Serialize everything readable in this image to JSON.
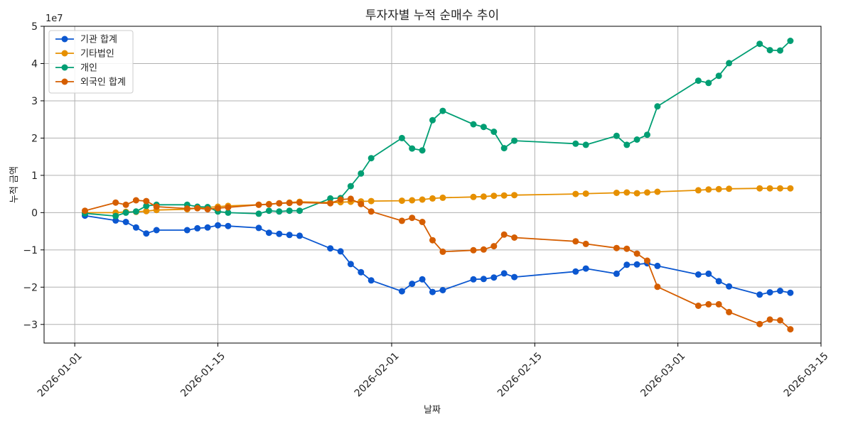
{
  "chart_data": {
    "type": "line",
    "title": "투자자별 누적 순매수 추이",
    "xlabel": "날짜",
    "ylabel": "누적 금액",
    "y_offset_label": "1e7",
    "y_scale": 10000000,
    "x_range": [
      "2025-12-29",
      "2026-03-15"
    ],
    "ylim": [
      -35000000,
      50000000
    ],
    "grid": true,
    "legend_position": "top-left",
    "x_ticks": [
      "2026-01-01",
      "2026-01-15",
      "2026-02-01",
      "2026-02-15",
      "2026-03-01",
      "2026-03-15"
    ],
    "y_ticks": [
      -30000000,
      -20000000,
      -10000000,
      0,
      10000000,
      20000000,
      30000000,
      40000000,
      50000000
    ],
    "y_tick_labels": [
      "−3",
      "−2",
      "−1",
      "0",
      "1",
      "2",
      "3",
      "4",
      "5"
    ],
    "x": [
      "2026-01-02",
      "2026-01-05",
      "2026-01-06",
      "2026-01-07",
      "2026-01-08",
      "2026-01-09",
      "2026-01-12",
      "2026-01-13",
      "2026-01-14",
      "2026-01-15",
      "2026-01-16",
      "2026-01-19",
      "2026-01-20",
      "2026-01-21",
      "2026-01-22",
      "2026-01-23",
      "2026-01-26",
      "2026-01-27",
      "2026-01-28",
      "2026-01-29",
      "2026-01-30",
      "2026-02-02",
      "2026-02-03",
      "2026-02-04",
      "2026-02-05",
      "2026-02-06",
      "2026-02-09",
      "2026-02-10",
      "2026-02-11",
      "2026-02-12",
      "2026-02-13",
      "2026-02-19",
      "2026-02-20",
      "2026-02-23",
      "2026-02-24",
      "2026-02-25",
      "2026-02-26",
      "2026-02-27",
      "2026-03-03",
      "2026-03-04",
      "2026-03-05",
      "2026-03-06",
      "2026-03-09",
      "2026-03-10",
      "2026-03-11",
      "2026-03-12"
    ],
    "series": [
      {
        "name": "기관 합계",
        "color": "#0b57d0",
        "values": [
          -800000,
          -2100000,
          -2500000,
          -4000000,
          -5600000,
          -4700000,
          -4700000,
          -4200000,
          -4000000,
          -3400000,
          -3600000,
          -4100000,
          -5400000,
          -5700000,
          -6000000,
          -6200000,
          -9600000,
          -10400000,
          -13800000,
          -16000000,
          -18200000,
          -21100000,
          -19100000,
          -17900000,
          -21300000,
          -20800000,
          -17900000,
          -17800000,
          -17400000,
          -16300000,
          -17300000,
          -15800000,
          -15000000,
          -16400000,
          -14000000,
          -13900000,
          -13600000,
          -14300000,
          -16600000,
          -16400000,
          -18400000,
          -19800000,
          -22000000,
          -21400000,
          -21000000,
          -21500000
        ]
      },
      {
        "name": "기타법인",
        "color": "#e69000",
        "values": [
          0,
          0,
          200000,
          200000,
          400000,
          700000,
          900000,
          1200000,
          1400000,
          1600000,
          1800000,
          2100000,
          2300000,
          2500000,
          2700000,
          2900000,
          2700000,
          2800000,
          2900000,
          3000000,
          3100000,
          3200000,
          3300000,
          3500000,
          3800000,
          4000000,
          4200000,
          4300000,
          4500000,
          4600000,
          4700000,
          5000000,
          5100000,
          5300000,
          5400000,
          5200000,
          5400000,
          5600000,
          6000000,
          6200000,
          6300000,
          6400000,
          6500000,
          6500000,
          6500000,
          6500000
        ]
      },
      {
        "name": "개인",
        "color": "#009e73",
        "values": [
          -200000,
          -900000,
          0,
          300000,
          1800000,
          2100000,
          2100000,
          1600000,
          1500000,
          300000,
          0,
          -300000,
          500000,
          300000,
          500000,
          500000,
          3800000,
          3900000,
          7100000,
          10500000,
          14600000,
          20000000,
          17200000,
          16700000,
          24800000,
          27300000,
          23700000,
          23000000,
          21700000,
          17300000,
          19300000,
          18500000,
          18200000,
          20600000,
          18200000,
          19600000,
          20900000,
          28500000,
          35400000,
          34800000,
          36700000,
          40100000,
          45300000,
          43600000,
          43500000,
          46100000
        ]
      },
      {
        "name": "외국인 합계",
        "color": "#d55e00",
        "values": [
          500000,
          2700000,
          2100000,
          3300000,
          3100000,
          1600000,
          1100000,
          1200000,
          900000,
          1200000,
          1400000,
          2100000,
          2200000,
          2500000,
          2600000,
          2700000,
          2500000,
          3500000,
          3700000,
          2300000,
          300000,
          -2200000,
          -1400000,
          -2500000,
          -7400000,
          -10500000,
          -10100000,
          -9900000,
          -9000000,
          -5900000,
          -6700000,
          -7700000,
          -8400000,
          -9500000,
          -9700000,
          -11000000,
          -12900000,
          -19900000,
          -25000000,
          -24600000,
          -24600000,
          -26700000,
          -29900000,
          -28700000,
          -28900000,
          -31300000
        ]
      }
    ]
  }
}
